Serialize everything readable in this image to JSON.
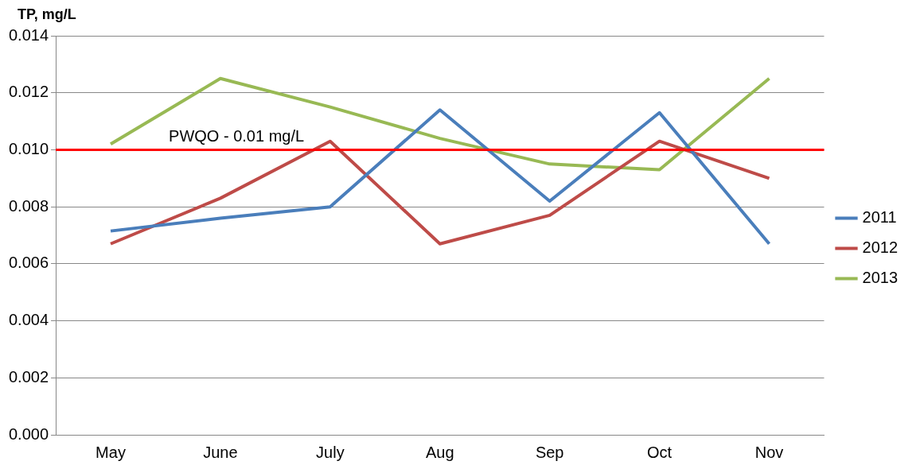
{
  "chart_data": {
    "type": "line",
    "ylabel": "TP, mg/L",
    "categories": [
      "May",
      "June",
      "July",
      "Aug",
      "Sep",
      "Oct",
      "Nov"
    ],
    "series": [
      {
        "name": "2011",
        "color": "#4a7ebb",
        "values": [
          0.00715,
          0.0076,
          0.008,
          0.0114,
          0.0082,
          0.0113,
          0.0067
        ]
      },
      {
        "name": "2012",
        "color": "#be4b48",
        "values": [
          0.0067,
          0.0083,
          0.0103,
          0.0067,
          0.0077,
          0.0103,
          0.009
        ]
      },
      {
        "name": "2013",
        "color": "#98b954",
        "values": [
          0.0102,
          0.0125,
          0.0115,
          0.0104,
          0.0095,
          0.0093,
          0.0125
        ]
      }
    ],
    "ylim": [
      0,
      0.014
    ],
    "yticks": [
      {
        "value": 0,
        "label": "0.000"
      },
      {
        "value": 0.002,
        "label": "0.002"
      },
      {
        "value": 0.004,
        "label": "0.004"
      },
      {
        "value": 0.006,
        "label": "0.006"
      },
      {
        "value": 0.008,
        "label": "0.008"
      },
      {
        "value": 0.01,
        "label": "0.010"
      },
      {
        "value": 0.012,
        "label": "0.012"
      },
      {
        "value": 0.014,
        "label": "0.014"
      }
    ],
    "ref_lines": [
      {
        "axis": "y",
        "value": 0.01,
        "label": "PWQO - 0.01 mg/L",
        "color": "#ff0000"
      }
    ],
    "grid": "y",
    "legend": "right",
    "marker": "none",
    "line_style": "solid"
  }
}
